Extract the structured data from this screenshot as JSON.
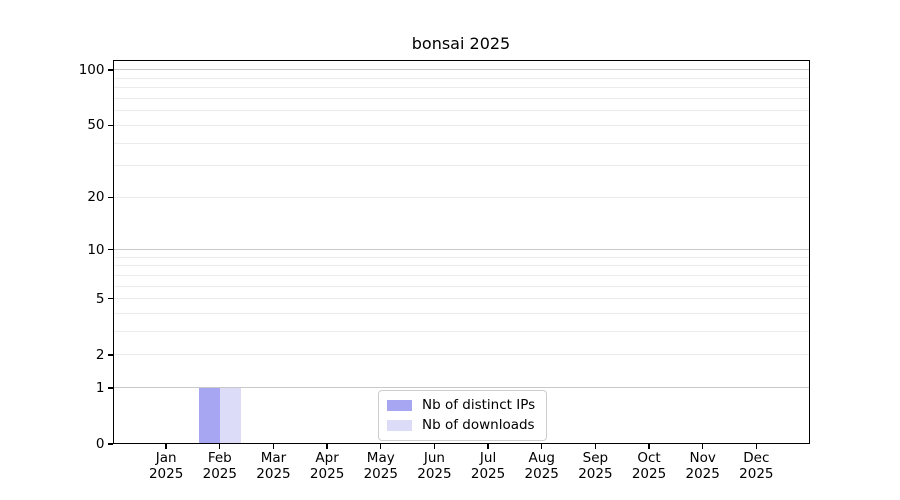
{
  "chart_data": {
    "type": "bar",
    "title": "bonsai 2025",
    "categories": [
      "Jan",
      "Feb",
      "Mar",
      "Apr",
      "May",
      "Jun",
      "Jul",
      "Aug",
      "Sep",
      "Oct",
      "Nov",
      "Dec"
    ],
    "x_year_label": "2025",
    "series": [
      {
        "name": "Nb of distinct IPs",
        "color": "#a6a6f3",
        "values": [
          0,
          1,
          0,
          0,
          0,
          0,
          0,
          0,
          0,
          0,
          0,
          0
        ]
      },
      {
        "name": "Nb of downloads",
        "color": "#dcdcf8",
        "values": [
          0,
          1,
          0,
          0,
          0,
          0,
          0,
          0,
          0,
          0,
          0,
          0
        ]
      }
    ],
    "y_scale": "log1p",
    "ylim": [
      0,
      100
    ],
    "y_ticks": [
      0,
      1,
      2,
      5,
      10,
      20,
      50,
      100
    ],
    "y_gridlines": [
      1,
      2,
      3,
      4,
      5,
      6,
      7,
      8,
      9,
      10,
      20,
      30,
      40,
      50,
      60,
      70,
      80,
      90,
      100
    ],
    "emphasized_gridlines": [
      1,
      10,
      100
    ],
    "legend_position": "bottom-center",
    "grid": "horizontal",
    "colors": {
      "bar_distinct_ips": "#a6a6f3",
      "bar_downloads": "#dcdcf8",
      "major_grid": "#c9c9c9",
      "minor_grid": "#ececec",
      "spine": "#000000",
      "text": "#000000",
      "legend_border": "#cccccc",
      "background": "#ffffff"
    }
  }
}
